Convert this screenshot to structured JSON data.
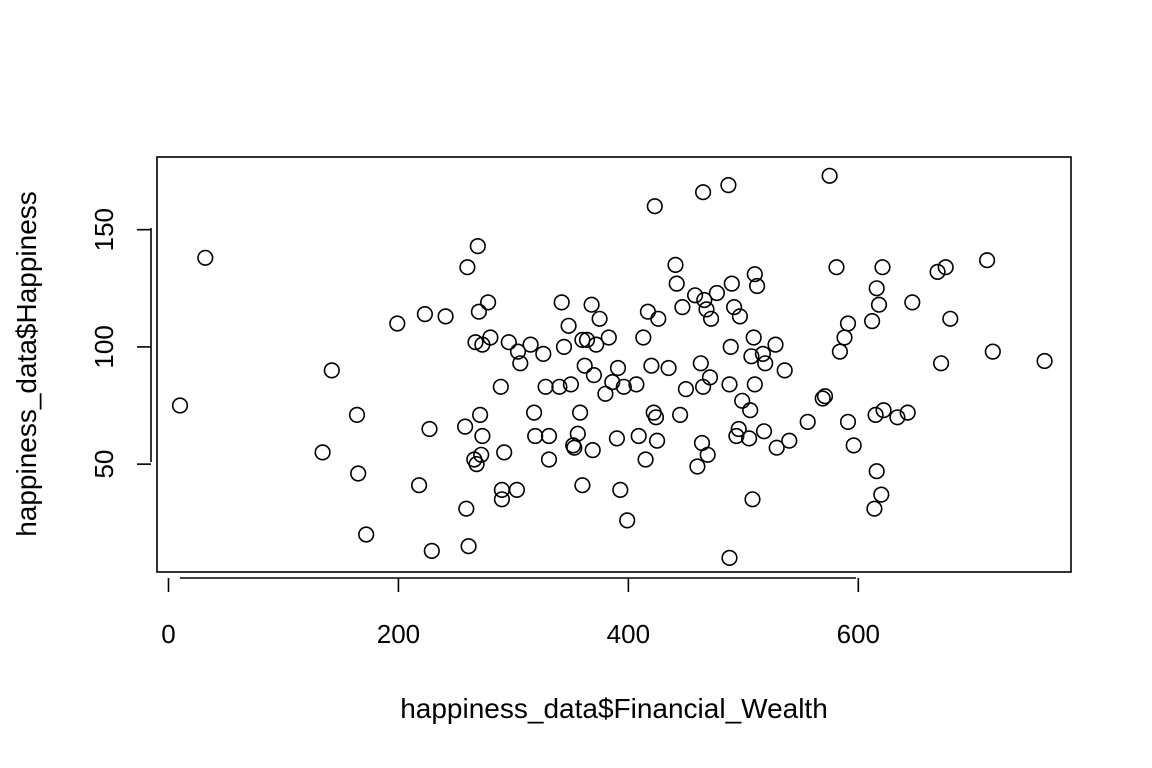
{
  "chart_data": {
    "type": "scatter",
    "title": "",
    "xlabel": "happiness_data$Financial_Wealth",
    "ylabel": "happiness_data$Happiness",
    "xlim": [
      -10,
      785
    ],
    "ylim": [
      4,
      181
    ],
    "xticks": [
      0,
      200,
      400,
      600
    ],
    "yticks": [
      50,
      100,
      150
    ],
    "grid": false,
    "points": [
      [
        10,
        75
      ],
      [
        32,
        138
      ],
      [
        134,
        55
      ],
      [
        142,
        90
      ],
      [
        164,
        71
      ],
      [
        165,
        46
      ],
      [
        172,
        20
      ],
      [
        199,
        110
      ],
      [
        218,
        41
      ],
      [
        223,
        114
      ],
      [
        227,
        65
      ],
      [
        229,
        13
      ],
      [
        241,
        113
      ],
      [
        258,
        66
      ],
      [
        259,
        31
      ],
      [
        260,
        134
      ],
      [
        261,
        15
      ],
      [
        266,
        52
      ],
      [
        267,
        102
      ],
      [
        268,
        50
      ],
      [
        269,
        143
      ],
      [
        270,
        115
      ],
      [
        271,
        71
      ],
      [
        272,
        54
      ],
      [
        273,
        101
      ],
      [
        273,
        62
      ],
      [
        278,
        119
      ],
      [
        280,
        104
      ],
      [
        289,
        83
      ],
      [
        290,
        35
      ],
      [
        290,
        39
      ],
      [
        292,
        55
      ],
      [
        296,
        102
      ],
      [
        303,
        39
      ],
      [
        304,
        98
      ],
      [
        306,
        93
      ],
      [
        315,
        101
      ],
      [
        318,
        72
      ],
      [
        319,
        62
      ],
      [
        326,
        97
      ],
      [
        328,
        83
      ],
      [
        331,
        62
      ],
      [
        331,
        52
      ],
      [
        340,
        83
      ],
      [
        342,
        119
      ],
      [
        344,
        100
      ],
      [
        348,
        109
      ],
      [
        350,
        84
      ],
      [
        352,
        58
      ],
      [
        353,
        57
      ],
      [
        356,
        63
      ],
      [
        358,
        72
      ],
      [
        360,
        41
      ],
      [
        360,
        103
      ],
      [
        362,
        92
      ],
      [
        364,
        103
      ],
      [
        368,
        118
      ],
      [
        369,
        56
      ],
      [
        370,
        88
      ],
      [
        372,
        101
      ],
      [
        375,
        112
      ],
      [
        380,
        80
      ],
      [
        383,
        104
      ],
      [
        386,
        85
      ],
      [
        390,
        61
      ],
      [
        391,
        91
      ],
      [
        393,
        39
      ],
      [
        396,
        83
      ],
      [
        399,
        26
      ],
      [
        407,
        84
      ],
      [
        409,
        62
      ],
      [
        413,
        104
      ],
      [
        415,
        52
      ],
      [
        417,
        115
      ],
      [
        420,
        92
      ],
      [
        422,
        72
      ],
      [
        423,
        160
      ],
      [
        424,
        70
      ],
      [
        425,
        60
      ],
      [
        426,
        112
      ],
      [
        435,
        91
      ],
      [
        441,
        135
      ],
      [
        442,
        127
      ],
      [
        445,
        71
      ],
      [
        447,
        117
      ],
      [
        450,
        82
      ],
      [
        458,
        122
      ],
      [
        460,
        49
      ],
      [
        463,
        93
      ],
      [
        464,
        59
      ],
      [
        465,
        83
      ],
      [
        465,
        166
      ],
      [
        466,
        120
      ],
      [
        468,
        116
      ],
      [
        469,
        54
      ],
      [
        471,
        87
      ],
      [
        472,
        112
      ],
      [
        477,
        123
      ],
      [
        487,
        169
      ],
      [
        488,
        84
      ],
      [
        488,
        10
      ],
      [
        489,
        100
      ],
      [
        490,
        127
      ],
      [
        492,
        117
      ],
      [
        494,
        62
      ],
      [
        496,
        65
      ],
      [
        497,
        113
      ],
      [
        499,
        77
      ],
      [
        505,
        61
      ],
      [
        506,
        73
      ],
      [
        507,
        96
      ],
      [
        508,
        35
      ],
      [
        509,
        104
      ],
      [
        510,
        84
      ],
      [
        510,
        131
      ],
      [
        512,
        126
      ],
      [
        517,
        97
      ],
      [
        518,
        64
      ],
      [
        519,
        93
      ],
      [
        528,
        101
      ],
      [
        529,
        57
      ],
      [
        536,
        90
      ],
      [
        540,
        60
      ],
      [
        556,
        68
      ],
      [
        569,
        78
      ],
      [
        571,
        79
      ],
      [
        575,
        173
      ],
      [
        581,
        134
      ],
      [
        584,
        98
      ],
      [
        588,
        104
      ],
      [
        591,
        110
      ],
      [
        591,
        68
      ],
      [
        596,
        58
      ],
      [
        612,
        111
      ],
      [
        614,
        31
      ],
      [
        615,
        71
      ],
      [
        616,
        125
      ],
      [
        616,
        47
      ],
      [
        618,
        118
      ],
      [
        620,
        37
      ],
      [
        621,
        134
      ],
      [
        622,
        73
      ],
      [
        634,
        70
      ],
      [
        643,
        72
      ],
      [
        647,
        119
      ],
      [
        669,
        132
      ],
      [
        672,
        93
      ],
      [
        676,
        134
      ],
      [
        680,
        112
      ],
      [
        712,
        137
      ],
      [
        717,
        98
      ],
      [
        762,
        94
      ]
    ]
  }
}
